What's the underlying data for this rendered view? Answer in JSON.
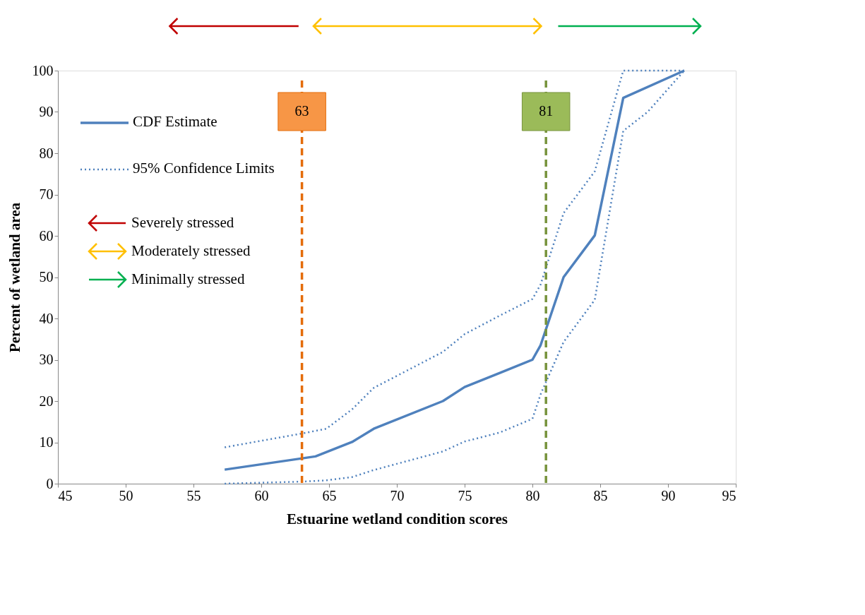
{
  "chart_data": {
    "type": "line",
    "xlabel": "Estuarine wetland condition scores",
    "ylabel": "Percent of wetland area",
    "xlim": [
      45,
      95
    ],
    "xticks": [
      45,
      50,
      55,
      60,
      65,
      70,
      75,
      80,
      85,
      90,
      95
    ],
    "ylim": [
      0,
      100
    ],
    "yticks": [
      0,
      10,
      20,
      30,
      40,
      50,
      60,
      70,
      80,
      90,
      100
    ],
    "grid": false,
    "legend": "top left",
    "marker": "none",
    "series": [
      {
        "name": "CDF Estimate",
        "color": "#4f81bd",
        "line_style": "solid",
        "x": [
          57.3,
          64.0,
          66.7,
          68.3,
          73.4,
          75.0,
          77.6,
          80.0,
          80.6,
          82.3,
          84.6,
          86.7,
          91.2
        ],
        "values": [
          3.4,
          6.6,
          10.1,
          13.3,
          20.0,
          23.4,
          26.8,
          30.0,
          33.5,
          50.0,
          60.1,
          93.4,
          100
        ]
      },
      {
        "name": "95% Confidence Limits",
        "color": "#4f81bd",
        "line_style": "dotted",
        "x": [
          57.3,
          63.1,
          64.8,
          66.7,
          68.3,
          73.4,
          75.0,
          77.6,
          80.0,
          80.6,
          82.3,
          84.6,
          86.7,
          91.2
        ],
        "values": [
          8.8,
          12.2,
          13.3,
          18.0,
          23.2,
          31.9,
          36.2,
          40.7,
          44.7,
          48.2,
          65.5,
          75.6,
          100,
          100
        ]
      },
      {
        "color": "#4f81bd",
        "line_style": "dotted",
        "x": [
          57.3,
          63.1,
          64.8,
          66.7,
          68.3,
          73.4,
          75.0,
          77.6,
          80.0,
          80.6,
          82.3,
          84.6,
          86.7,
          88.5,
          91.2
        ],
        "values": [
          0,
          0.5,
          0.8,
          1.6,
          3.3,
          7.8,
          10.2,
          12.4,
          15.7,
          21.6,
          34.3,
          44.5,
          85.4,
          90,
          100
        ]
      }
    ],
    "ref_lines": [
      {
        "axis": "x",
        "value": 63,
        "label": "63",
        "color": "#e46c0a",
        "line_style": "dashed"
      },
      {
        "axis": "x",
        "value": 81,
        "label": "81",
        "color": "#77933c",
        "line_style": "dashed"
      }
    ],
    "annotations": [
      "Severely stressed",
      "Moderately stressed",
      "Minimally stressed"
    ]
  }
}
